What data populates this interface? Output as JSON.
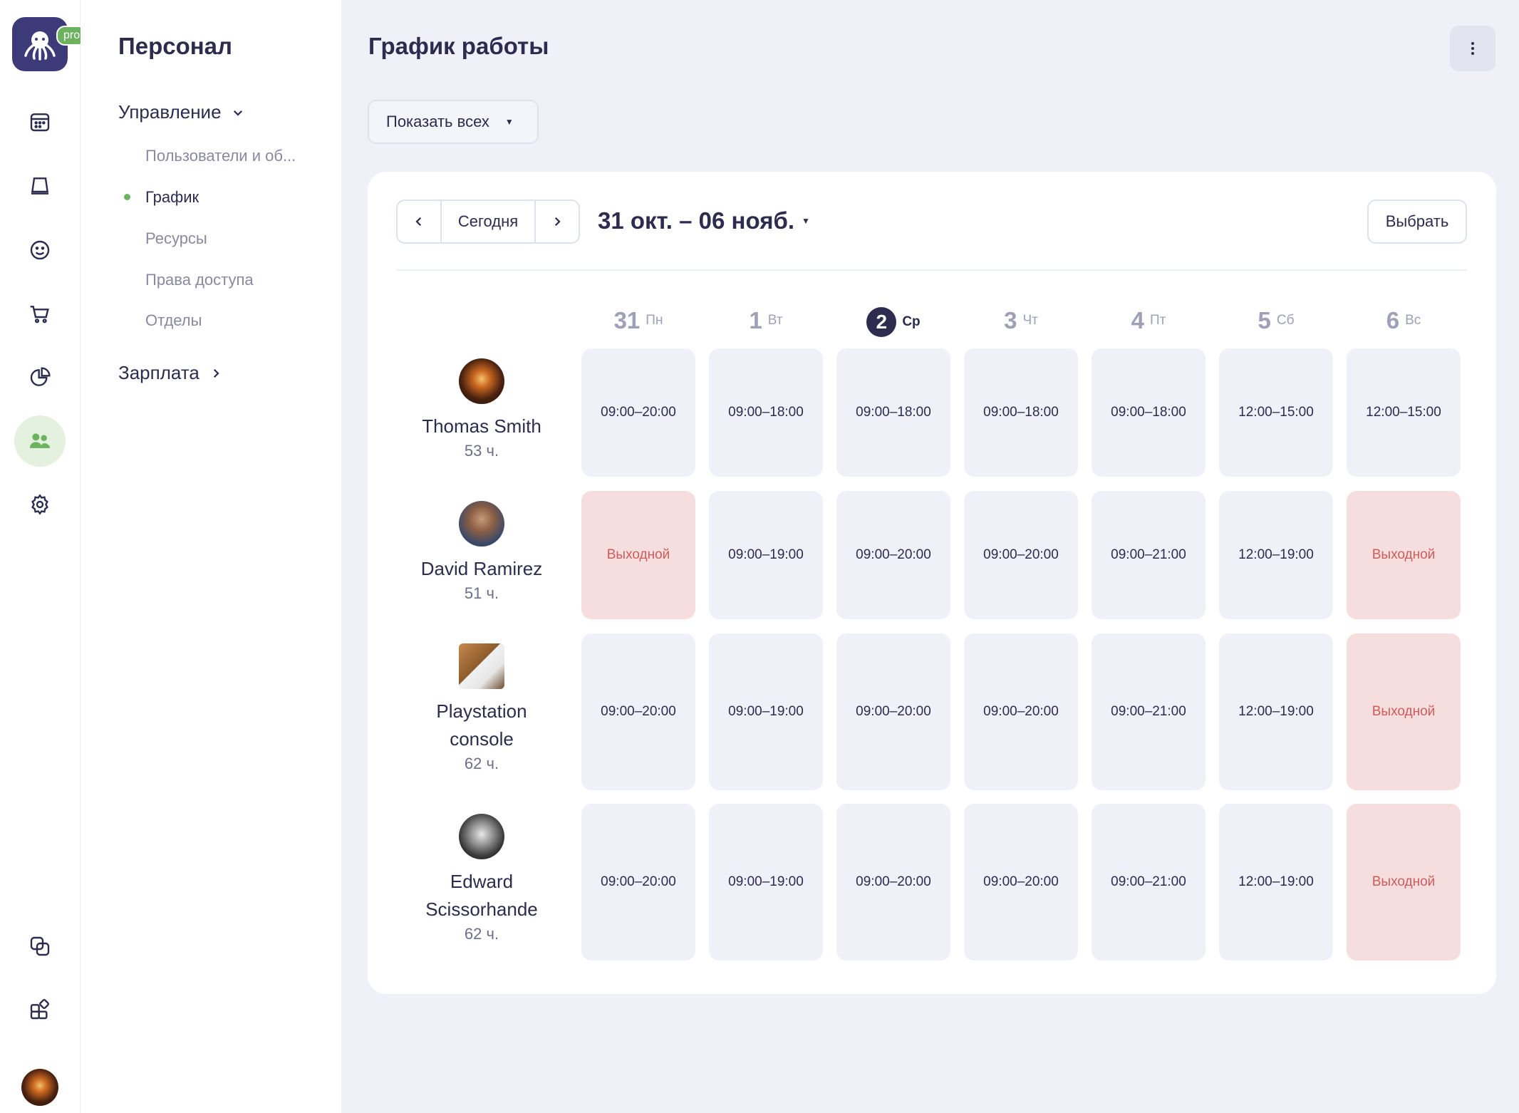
{
  "app": {
    "badge": "pro"
  },
  "rail": {
    "items": [
      {
        "icon": "calendar-icon"
      },
      {
        "icon": "inbox-icon"
      },
      {
        "icon": "smile-icon"
      },
      {
        "icon": "cart-icon"
      },
      {
        "icon": "pie-chart-icon"
      },
      {
        "icon": "people-icon",
        "active": true
      },
      {
        "icon": "gear-icon"
      },
      {
        "icon": "copy-icon"
      },
      {
        "icon": "apps-icon"
      }
    ]
  },
  "sidebar": {
    "title": "Персонал",
    "group_management": "Управление",
    "items": [
      {
        "label": "Пользователи и об..."
      },
      {
        "label": "График",
        "active": true
      },
      {
        "label": "Ресурсы"
      },
      {
        "label": "Права доступа"
      },
      {
        "label": "Отделы"
      }
    ],
    "group_salary": "Зарплата"
  },
  "main": {
    "title": "График работы",
    "filter_label": "Показать всех",
    "nav": {
      "today": "Сегодня"
    },
    "range": "31 окт. – 06 нояб.",
    "select_label": "Выбрать",
    "colors": {
      "accent": "#2d2b4e",
      "off_bg": "#f7dede",
      "off_text": "#cf5b5b",
      "green": "#6db35f"
    }
  },
  "schedule": {
    "days": [
      {
        "num": "31",
        "name": "Пн"
      },
      {
        "num": "1",
        "name": "Вт"
      },
      {
        "num": "2",
        "name": "Ср",
        "today": true
      },
      {
        "num": "3",
        "name": "Чт"
      },
      {
        "num": "4",
        "name": "Пт"
      },
      {
        "num": "5",
        "name": "Сб"
      },
      {
        "num": "6",
        "name": "Вс"
      }
    ],
    "off_label": "Выходной",
    "people": [
      {
        "name": "Thomas Smith",
        "hours": "53 ч.",
        "shifts": [
          "09:00–20:00",
          "09:00–18:00",
          "09:00–18:00",
          "09:00–18:00",
          "09:00–18:00",
          "12:00–15:00",
          "12:00–15:00"
        ]
      },
      {
        "name": "David Ramirez",
        "hours": "51 ч.",
        "shifts": [
          "Выходной",
          "09:00–19:00",
          "09:00–20:00",
          "09:00–20:00",
          "09:00–21:00",
          "12:00–19:00",
          "Выходной"
        ]
      },
      {
        "name": "Playstation console",
        "hours": "62 ч.",
        "shifts": [
          "09:00–20:00",
          "09:00–19:00",
          "09:00–20:00",
          "09:00–20:00",
          "09:00–21:00",
          "12:00–19:00",
          "Выходной"
        ]
      },
      {
        "name": "Edward Scissorhande",
        "hours": "62 ч.",
        "shifts": [
          "09:00–20:00",
          "09:00–19:00",
          "09:00–20:00",
          "09:00–20:00",
          "09:00–21:00",
          "12:00–19:00",
          "Выходной"
        ]
      }
    ]
  }
}
